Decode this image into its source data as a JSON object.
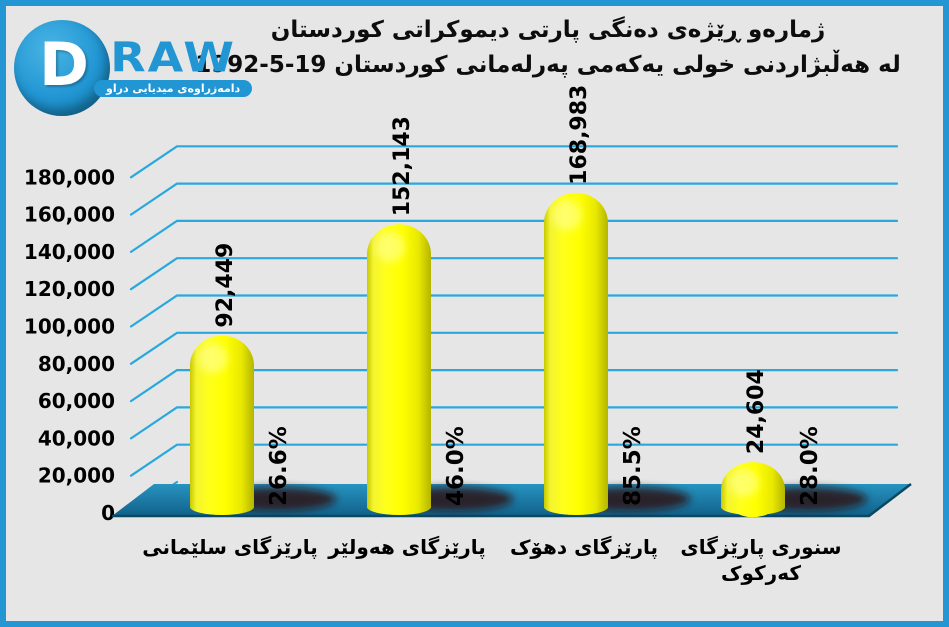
{
  "logo": {
    "monogram": "D",
    "wordmark": "RAW",
    "tagline": "دامەزراوەی میدیایی دراو"
  },
  "title": {
    "line1": "ژمارەو ڕێژەی دەنگی پارتی دیموکراتی کوردستان",
    "line2_text": "له هەڵبژاردنی خولی یەکەمی پەرلەمانی کوردستان",
    "line2_date": "1992-5-19"
  },
  "chart_data": {
    "type": "bar",
    "style": "3d-cylinder-bars",
    "title": "ژمارەو ڕێژەی دەنگی پارتی دیموکراتی کوردستان له هەڵبژاردنی خولی یەکەمی پەرلەمانی کوردستان 1992-5-19",
    "categories": [
      "پارێزگای سلێمانی",
      "پارێزگای هەولێر",
      "پارێزگای دهۆک",
      "سنوری پارێزگای کەرکوک"
    ],
    "category_lines": [
      [
        "پارێزگای سلێمانی"
      ],
      [
        "پارێزگای هەولێر"
      ],
      [
        "پارێزگای دهۆک"
      ],
      [
        "سنوری پارێزگای",
        "کەرکوک"
      ]
    ],
    "series": [
      {
        "name": "دەنگی پارتی دیموکراتی کوردستان",
        "values": [
          92449,
          152143,
          168983,
          24604
        ],
        "value_labels": [
          "92,449",
          "152,143",
          "168,983",
          "24,604"
        ],
        "percent_labels": [
          "26.6%",
          "46.0%",
          "85.5%",
          "28.0%"
        ]
      }
    ],
    "ylim": [
      0,
      180000
    ],
    "ytick_interval": 20000,
    "ytick_labels": [
      "0",
      "20,000",
      "40,000",
      "60,000",
      "80,000",
      "100,000",
      "120,000",
      "140,000",
      "160,000",
      "180,000"
    ],
    "grid": true,
    "legend": false,
    "colors": {
      "background": "#e6e6e6",
      "frame_border": "#2496d3",
      "grid": "#29a8dc",
      "bar": "#ffff00",
      "bar_shade": "#b5b500",
      "floor_top": "#2793c0",
      "floor_bottom": "#11618a",
      "floor_edge": "#0b4862",
      "shadow": "#2e0f0f",
      "text": "#000000",
      "logo_blue": "#2196d3"
    }
  }
}
